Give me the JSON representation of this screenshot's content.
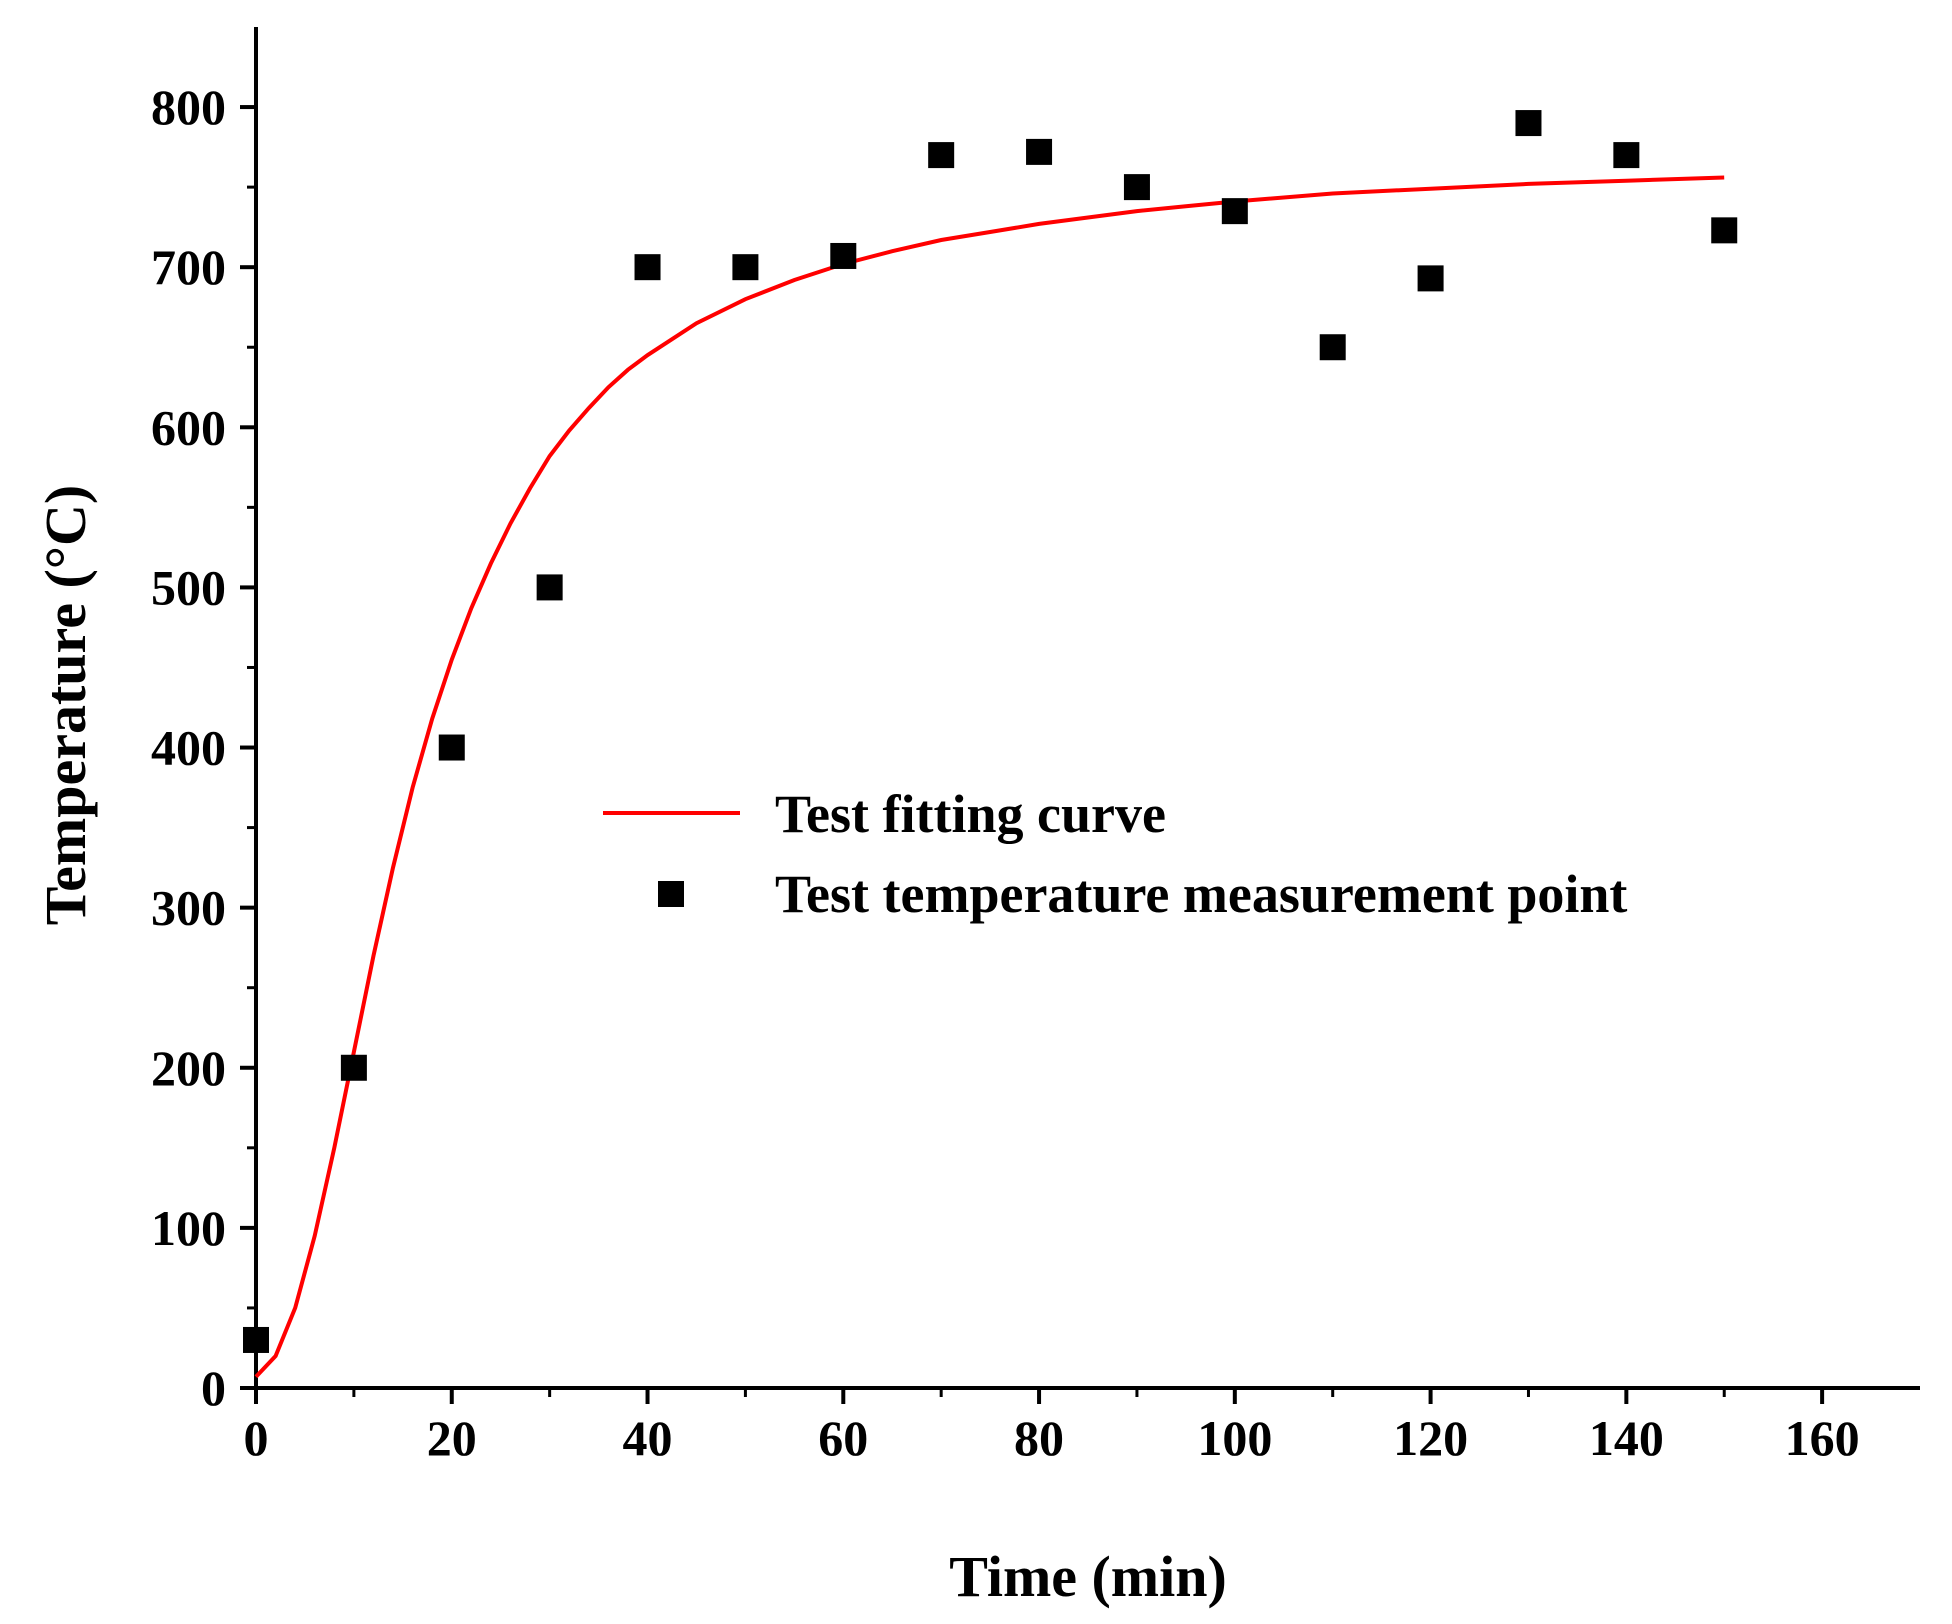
{
  "chart_data": {
    "type": "scatter",
    "title": "",
    "xlabel": "Time (min)",
    "ylabel": "Temperature (°C)",
    "xlim": [
      0,
      170
    ],
    "ylim": [
      0,
      850
    ],
    "xticks": [
      0,
      20,
      40,
      60,
      80,
      100,
      120,
      140,
      160
    ],
    "xtick_labels": [
      "0",
      "20",
      "40",
      "60",
      "80",
      "100",
      "120",
      "140",
      "160"
    ],
    "yticks": [
      0,
      100,
      200,
      300,
      400,
      500,
      600,
      700,
      800
    ],
    "ytick_labels": [
      "0",
      "100",
      "200",
      "300",
      "400",
      "500",
      "600",
      "700",
      "800"
    ],
    "grid": false,
    "legend_position": "center-right",
    "colors": {
      "curve": "#ff0000",
      "points": "#000000",
      "axes": "#000000"
    },
    "series": [
      {
        "name": "Test fitting curve",
        "kind": "line",
        "x": [
          0,
          2,
          4,
          6,
          8,
          10,
          12,
          14,
          16,
          18,
          20,
          22,
          24,
          26,
          28,
          30,
          32,
          34,
          36,
          38,
          40,
          45,
          50,
          55,
          60,
          65,
          70,
          75,
          80,
          85,
          90,
          95,
          100,
          110,
          120,
          130,
          140,
          150
        ],
        "y": [
          7,
          20,
          50,
          95,
          150,
          210,
          270,
          325,
          375,
          418,
          455,
          487,
          515,
          540,
          562,
          582,
          598,
          612,
          625,
          636,
          645,
          665,
          680,
          692,
          702,
          710,
          717,
          722,
          727,
          731,
          735,
          738,
          741,
          746,
          749,
          752,
          754,
          756
        ]
      },
      {
        "name": "Test temperature measurement point",
        "kind": "scatter",
        "marker": "square",
        "x": [
          0,
          10,
          20,
          30,
          40,
          50,
          60,
          70,
          80,
          90,
          100,
          110,
          120,
          130,
          140,
          150
        ],
        "y": [
          30,
          200,
          400,
          500,
          700,
          700,
          707,
          770,
          772,
          750,
          735,
          650,
          693,
          790,
          770,
          723
        ]
      }
    ]
  }
}
